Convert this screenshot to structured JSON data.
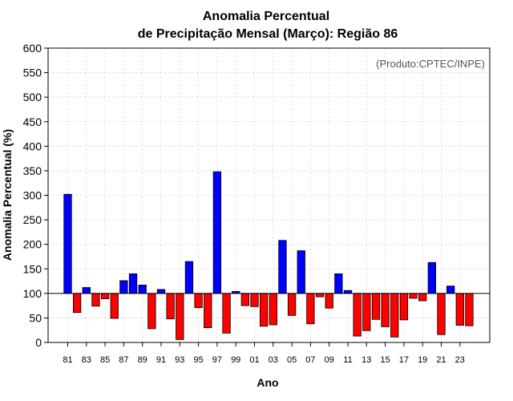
{
  "chart_data": {
    "type": "bar",
    "title_line1": "Anomalia Percentual",
    "title_line2": "de Precipitação Mensal (Março): Região 86",
    "xlabel": "Ano",
    "ylabel": "Anomalia Percentual (%)",
    "credit": "(Produto:CPTEC/INPE)",
    "ylim": [
      0,
      600
    ],
    "baseline": 100,
    "yticks": [
      0,
      50,
      100,
      150,
      200,
      250,
      300,
      350,
      400,
      450,
      500,
      550,
      600
    ],
    "xtick_labels": [
      "81",
      "83",
      "85",
      "87",
      "89",
      "91",
      "93",
      "95",
      "97",
      "99",
      "01",
      "03",
      "05",
      "07",
      "09",
      "11",
      "13",
      "15",
      "17",
      "19",
      "21",
      "23"
    ],
    "categories": [
      "1981",
      "1982",
      "1983",
      "1984",
      "1985",
      "1986",
      "1987",
      "1988",
      "1989",
      "1990",
      "1991",
      "1992",
      "1993",
      "1994",
      "1995",
      "1996",
      "1997",
      "1998",
      "1999",
      "2000",
      "2001",
      "2002",
      "2003",
      "2004",
      "2005",
      "2006",
      "2007",
      "2008",
      "2009",
      "2010",
      "2011",
      "2012",
      "2013",
      "2014",
      "2015",
      "2016",
      "2017",
      "2018",
      "2019",
      "2020",
      "2021",
      "2022",
      "2023",
      "2024"
    ],
    "values": [
      302,
      61,
      112,
      74,
      89,
      49,
      126,
      140,
      117,
      28,
      108,
      48,
      6,
      165,
      71,
      30,
      348,
      19,
      104,
      75,
      73,
      33,
      36,
      208,
      55,
      187,
      38,
      93,
      70,
      140,
      106,
      13,
      24,
      47,
      32,
      11,
      46,
      90,
      85,
      163,
      16,
      115,
      35,
      34
    ],
    "colors": {
      "above": "#0000ff",
      "below": "#ff0000"
    }
  }
}
